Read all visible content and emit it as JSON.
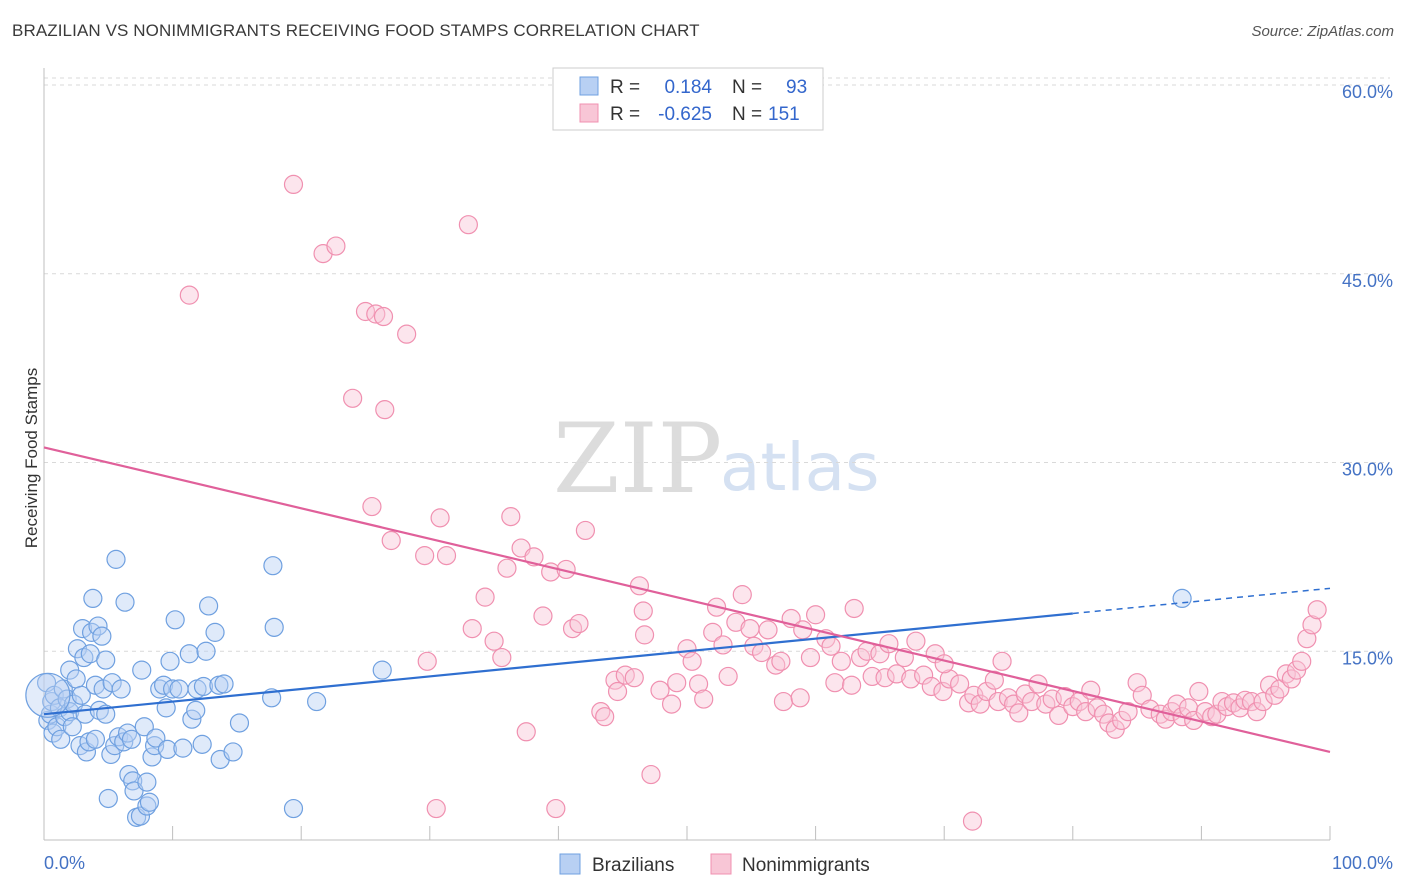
{
  "title": "BRAZILIAN VS NONIMMIGRANTS RECEIVING FOOD STAMPS CORRELATION CHART",
  "source": "Source: ZipAtlas.com",
  "watermark": {
    "zip": "ZIP",
    "atlas": "atlas"
  },
  "colors": {
    "brazilians": "#6fa0e0",
    "brazilians_fill": "#b8d0f3",
    "brazilians_line": "#2f6fd0",
    "nonimmigrants": "#f090b0",
    "nonimmigrants_fill": "#f8c6d6",
    "nonimmigrants_line": "#e0609a",
    "grid": "#d9d9d9",
    "axis_text": "#4472c4"
  },
  "legend_top": {
    "rows": [
      {
        "r_label": "R =",
        "r_value": "0.184",
        "n_label": "N =",
        "n_value": "93",
        "series": "brazilians"
      },
      {
        "r_label": "R =",
        "r_value": "-0.625",
        "n_label": "N =",
        "n_value": "151",
        "series": "nonimmigrants"
      }
    ]
  },
  "legend_bottom": [
    {
      "label": "Brazilians",
      "series": "brazilians"
    },
    {
      "label": "Nonimmigrants",
      "series": "nonimmigrants"
    }
  ],
  "chart_data": {
    "type": "scatter",
    "title": "BRAZILIAN VS NONIMMIGRANTS RECEIVING FOOD STAMPS CORRELATION CHART",
    "xlabel": "",
    "ylabel": "Receiving Food Stamps",
    "xlim": [
      0,
      100
    ],
    "ylim": [
      0,
      62
    ],
    "x_ticks": [
      {
        "value": 0,
        "label": "0.0%"
      },
      {
        "value": 100,
        "label": "100.0%"
      }
    ],
    "y_ticks": [
      {
        "value": 15,
        "label": "15.0%"
      },
      {
        "value": 30,
        "label": "30.0%"
      },
      {
        "value": 45,
        "label": "45.0%"
      },
      {
        "value": 60,
        "label": "60.0%"
      }
    ],
    "x_minor_ticks": [
      10,
      20,
      30,
      40,
      50,
      60,
      70,
      80,
      90
    ],
    "grid": true,
    "legend": "top-center",
    "series": [
      {
        "name": "Brazilians",
        "trend": {
          "x": [
            0,
            80
          ],
          "y": [
            10.0,
            18.0
          ],
          "dashed_to": [
            100,
            20.0
          ]
        },
        "points": [
          [
            0.2,
            12.5
          ],
          [
            0.3,
            9.5
          ],
          [
            0.5,
            10.0
          ],
          [
            0.6,
            11.0
          ],
          [
            0.7,
            8.5
          ],
          [
            0.8,
            11.5
          ],
          [
            1.0,
            9.0
          ],
          [
            1.2,
            10.5
          ],
          [
            1.3,
            8.0
          ],
          [
            1.5,
            12.0
          ],
          [
            1.6,
            9.8
          ],
          [
            1.8,
            11.2
          ],
          [
            2.0,
            10.2
          ],
          [
            2.0,
            13.5
          ],
          [
            2.2,
            9.0
          ],
          [
            2.3,
            10.8
          ],
          [
            2.5,
            12.8
          ],
          [
            2.6,
            15.2
          ],
          [
            2.8,
            7.5
          ],
          [
            2.9,
            11.5
          ],
          [
            3.0,
            16.8
          ],
          [
            3.1,
            14.5
          ],
          [
            3.2,
            10.0
          ],
          [
            3.3,
            7.0
          ],
          [
            3.5,
            7.8
          ],
          [
            3.6,
            14.8
          ],
          [
            3.7,
            16.5
          ],
          [
            3.8,
            19.2
          ],
          [
            4.0,
            8.0
          ],
          [
            4.0,
            12.3
          ],
          [
            4.2,
            17.0
          ],
          [
            4.3,
            10.3
          ],
          [
            4.5,
            16.2
          ],
          [
            4.6,
            12.0
          ],
          [
            4.8,
            10.0
          ],
          [
            4.8,
            14.3
          ],
          [
            5.0,
            3.3
          ],
          [
            5.2,
            6.8
          ],
          [
            5.3,
            12.5
          ],
          [
            5.5,
            7.5
          ],
          [
            5.6,
            22.3
          ],
          [
            5.8,
            8.2
          ],
          [
            6.0,
            12.0
          ],
          [
            6.2,
            7.8
          ],
          [
            6.3,
            18.9
          ],
          [
            6.5,
            8.5
          ],
          [
            6.6,
            5.2
          ],
          [
            6.8,
            8.0
          ],
          [
            6.9,
            4.7
          ],
          [
            7.0,
            3.9
          ],
          [
            7.2,
            1.8
          ],
          [
            7.5,
            1.9
          ],
          [
            7.6,
            13.5
          ],
          [
            7.8,
            9.0
          ],
          [
            8.0,
            2.7
          ],
          [
            8.0,
            4.6
          ],
          [
            8.2,
            3.0
          ],
          [
            8.4,
            6.6
          ],
          [
            8.6,
            7.5
          ],
          [
            8.7,
            8.1
          ],
          [
            9.0,
            12.0
          ],
          [
            9.3,
            12.3
          ],
          [
            9.5,
            10.5
          ],
          [
            9.6,
            7.2
          ],
          [
            9.8,
            14.2
          ],
          [
            10.0,
            12.0
          ],
          [
            10.2,
            17.5
          ],
          [
            10.5,
            12.0
          ],
          [
            10.8,
            7.3
          ],
          [
            11.3,
            14.8
          ],
          [
            11.5,
            9.6
          ],
          [
            11.8,
            10.3
          ],
          [
            11.9,
            12.0
          ],
          [
            12.3,
            7.6
          ],
          [
            12.4,
            12.2
          ],
          [
            12.6,
            15.0
          ],
          [
            12.8,
            18.6
          ],
          [
            13.3,
            16.5
          ],
          [
            13.6,
            12.3
          ],
          [
            13.7,
            6.4
          ],
          [
            14.0,
            12.4
          ],
          [
            14.7,
            7.0
          ],
          [
            15.2,
            9.3
          ],
          [
            17.7,
            11.3
          ],
          [
            17.8,
            21.8
          ],
          [
            17.9,
            16.9
          ],
          [
            19.4,
            2.5
          ],
          [
            21.2,
            11.0
          ],
          [
            26.3,
            13.5
          ],
          [
            88.5,
            19.2
          ]
        ]
      },
      {
        "name": "Nonimmigrants",
        "trend": {
          "x": [
            0,
            100
          ],
          "y": [
            31.2,
            7.0
          ]
        },
        "points": [
          [
            11.3,
            43.3
          ],
          [
            19.4,
            52.1
          ],
          [
            21.7,
            46.6
          ],
          [
            22.7,
            47.2
          ],
          [
            24.0,
            35.1
          ],
          [
            25.0,
            42.0
          ],
          [
            25.5,
            26.5
          ],
          [
            25.8,
            41.8
          ],
          [
            26.4,
            41.6
          ],
          [
            26.5,
            34.2
          ],
          [
            27.0,
            23.8
          ],
          [
            28.2,
            40.2
          ],
          [
            29.6,
            22.6
          ],
          [
            29.8,
            14.2
          ],
          [
            30.5,
            2.5
          ],
          [
            30.8,
            25.6
          ],
          [
            31.3,
            22.6
          ],
          [
            33.0,
            48.9
          ],
          [
            33.3,
            16.8
          ],
          [
            34.3,
            19.3
          ],
          [
            35.0,
            15.8
          ],
          [
            35.6,
            14.5
          ],
          [
            36.0,
            21.6
          ],
          [
            36.3,
            25.7
          ],
          [
            37.1,
            23.2
          ],
          [
            37.5,
            8.6
          ],
          [
            38.1,
            22.5
          ],
          [
            38.8,
            17.8
          ],
          [
            39.4,
            21.3
          ],
          [
            39.8,
            2.5
          ],
          [
            40.6,
            21.5
          ],
          [
            41.1,
            16.8
          ],
          [
            41.6,
            17.2
          ],
          [
            42.1,
            24.6
          ],
          [
            43.3,
            10.2
          ],
          [
            43.6,
            9.8
          ],
          [
            44.4,
            12.7
          ],
          [
            44.6,
            11.8
          ],
          [
            45.2,
            13.1
          ],
          [
            45.9,
            12.9
          ],
          [
            46.3,
            20.2
          ],
          [
            46.6,
            18.2
          ],
          [
            46.7,
            16.3
          ],
          [
            47.2,
            5.2
          ],
          [
            47.9,
            11.9
          ],
          [
            48.8,
            10.8
          ],
          [
            49.2,
            12.5
          ],
          [
            50.0,
            15.2
          ],
          [
            50.4,
            14.2
          ],
          [
            50.9,
            12.4
          ],
          [
            51.3,
            11.2
          ],
          [
            52.0,
            16.5
          ],
          [
            52.3,
            18.5
          ],
          [
            52.8,
            15.5
          ],
          [
            53.2,
            13.0
          ],
          [
            53.8,
            17.3
          ],
          [
            54.3,
            19.5
          ],
          [
            54.9,
            16.8
          ],
          [
            55.2,
            15.4
          ],
          [
            55.8,
            14.9
          ],
          [
            56.3,
            16.7
          ],
          [
            56.9,
            13.9
          ],
          [
            57.3,
            14.2
          ],
          [
            57.5,
            11.0
          ],
          [
            58.1,
            17.6
          ],
          [
            58.8,
            11.3
          ],
          [
            59.0,
            16.7
          ],
          [
            59.6,
            14.5
          ],
          [
            60.0,
            17.9
          ],
          [
            60.8,
            16.0
          ],
          [
            61.2,
            15.4
          ],
          [
            61.5,
            12.5
          ],
          [
            62.0,
            14.2
          ],
          [
            62.8,
            12.3
          ],
          [
            63.0,
            18.4
          ],
          [
            63.5,
            14.5
          ],
          [
            64.0,
            15.0
          ],
          [
            64.4,
            13.0
          ],
          [
            65.0,
            14.8
          ],
          [
            65.4,
            12.9
          ],
          [
            65.7,
            15.6
          ],
          [
            66.3,
            13.2
          ],
          [
            66.9,
            14.5
          ],
          [
            67.4,
            12.8
          ],
          [
            67.8,
            15.8
          ],
          [
            68.4,
            13.1
          ],
          [
            69.0,
            12.2
          ],
          [
            69.3,
            14.8
          ],
          [
            69.9,
            11.8
          ],
          [
            70.4,
            12.8
          ],
          [
            71.2,
            12.4
          ],
          [
            71.9,
            10.9
          ],
          [
            72.3,
            11.5
          ],
          [
            72.8,
            10.8
          ],
          [
            73.3,
            11.8
          ],
          [
            73.9,
            12.7
          ],
          [
            74.2,
            11.0
          ],
          [
            74.5,
            14.2
          ],
          [
            75.0,
            11.3
          ],
          [
            75.4,
            10.8
          ],
          [
            75.8,
            10.1
          ],
          [
            76.3,
            11.6
          ],
          [
            76.8,
            11.0
          ],
          [
            77.3,
            12.4
          ],
          [
            77.9,
            10.8
          ],
          [
            78.4,
            11.2
          ],
          [
            78.9,
            9.9
          ],
          [
            79.4,
            11.4
          ],
          [
            80.0,
            10.6
          ],
          [
            80.5,
            11.0
          ],
          [
            81.0,
            10.2
          ],
          [
            81.4,
            11.9
          ],
          [
            81.9,
            10.5
          ],
          [
            82.4,
            10.0
          ],
          [
            82.8,
            9.3
          ],
          [
            83.3,
            8.8
          ],
          [
            83.8,
            9.5
          ],
          [
            84.3,
            10.2
          ],
          [
            85.0,
            12.5
          ],
          [
            85.4,
            11.5
          ],
          [
            86.0,
            10.4
          ],
          [
            86.8,
            10.0
          ],
          [
            87.2,
            9.6
          ],
          [
            87.7,
            10.2
          ],
          [
            88.1,
            10.8
          ],
          [
            88.5,
            9.8
          ],
          [
            89.0,
            10.5
          ],
          [
            89.4,
            9.5
          ],
          [
            89.8,
            11.8
          ],
          [
            90.3,
            10.2
          ],
          [
            90.8,
            9.8
          ],
          [
            91.2,
            10.0
          ],
          [
            91.6,
            11.0
          ],
          [
            92.0,
            10.6
          ],
          [
            92.5,
            10.9
          ],
          [
            93.0,
            10.5
          ],
          [
            93.4,
            11.1
          ],
          [
            93.9,
            11.0
          ],
          [
            94.3,
            10.2
          ],
          [
            94.8,
            11.0
          ],
          [
            95.3,
            12.3
          ],
          [
            95.7,
            11.5
          ],
          [
            96.1,
            12.0
          ],
          [
            96.6,
            13.2
          ],
          [
            97.0,
            12.8
          ],
          [
            97.4,
            13.5
          ],
          [
            97.8,
            14.2
          ],
          [
            98.2,
            16.0
          ],
          [
            98.6,
            17.1
          ],
          [
            99.0,
            18.3
          ],
          [
            72.2,
            1.5
          ],
          [
            70.0,
            14.0
          ]
        ]
      }
    ]
  }
}
